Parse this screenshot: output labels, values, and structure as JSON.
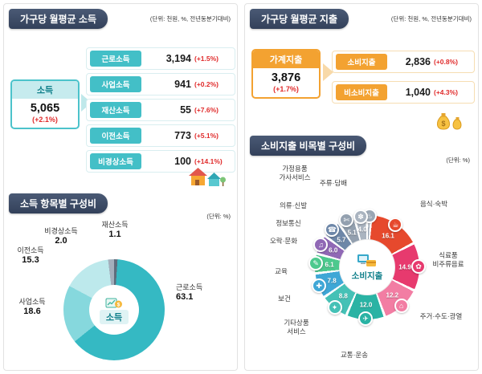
{
  "income_panel": {
    "header": "가구당 월평균 소득",
    "unit_note": "(단위: 천원, %, 전년동분기대비)",
    "total_box": {
      "label": "소득",
      "value": "5,065",
      "change": "(+2.1%)"
    },
    "breakdown": [
      {
        "label": "근로소득",
        "value": "3,194",
        "change": "(+1.5%)"
      },
      {
        "label": "사업소득",
        "value": "941",
        "change": "(+0.2%)"
      },
      {
        "label": "재산소득",
        "value": "55",
        "change": "(+7.6%)"
      },
      {
        "label": "이전소득",
        "value": "773",
        "change": "(+5.1%)"
      },
      {
        "label": "비경상소득",
        "value": "100",
        "change": "(+14.1%)"
      }
    ],
    "composition_header": "소득 항목별 구성비",
    "composition_unit_note": "(단위: %)"
  },
  "expense_panel": {
    "header": "가구당 월평균 지출",
    "unit_note": "(단위: 천원, %, 전년동분기대비)",
    "total_box": {
      "label": "가계지출",
      "value": "3,876",
      "change": "(+1.7%)"
    },
    "breakdown": [
      {
        "label": "소비지출",
        "value": "2,836",
        "change": "(+0.8%)"
      },
      {
        "label": "비소비지출",
        "value": "1,040",
        "change": "(+4.3%)"
      }
    ],
    "composition_header": "소비지출 비목별 구성비",
    "composition_unit_note": "(단위: %)"
  },
  "chart_data": [
    {
      "type": "pie",
      "title": "소득 항목별 구성비",
      "unit": "%",
      "center_label": "소득",
      "order": "clockwise from 12 o'clock",
      "segments": [
        {
          "label": "재산소득",
          "value": 1.1,
          "value_display": "1.1",
          "color": "#5e6c7c"
        },
        {
          "label": "근로소득",
          "value": 63.1,
          "value_display": "63.1",
          "color": "#35b9c3"
        },
        {
          "label": "사업소득",
          "value": 18.6,
          "value_display": "18.6",
          "color": "#86d8dd"
        },
        {
          "label": "이전소득",
          "value": 15.3,
          "value_display": "15.3",
          "color": "#bde9ec"
        },
        {
          "label": "비경상소득",
          "value": 2.0,
          "value_display": "2.0",
          "color": "#a3afbc"
        }
      ]
    },
    {
      "type": "pie",
      "title": "소비지출 비목별 구성비",
      "unit": "%",
      "center_label": "소비지출",
      "order": "clockwise from 12 o'clock",
      "segments": [
        {
          "label": "주류·담배",
          "label_display": "주류·담배",
          "value": 1.3,
          "value_display": "",
          "color": "#9aa6b4",
          "icon": "cigarette-icon"
        },
        {
          "label": "음식·숙박",
          "label_display": "음식·숙박",
          "value": 16.1,
          "value_display": "16.1",
          "color": "#e6492d",
          "icon": "restaurant-icon"
        },
        {
          "label": "식료품·비주류음료",
          "label_display": "식료품\n비주류음료",
          "value": 14.9,
          "value_display": "14.9",
          "color": "#e73a6e",
          "icon": "grocery-icon"
        },
        {
          "label": "주거·수도·광열",
          "label_display": "주거·수도·광열",
          "value": 12.2,
          "value_display": "12.2",
          "color": "#f27da3",
          "icon": "house-icon"
        },
        {
          "label": "교통·운송",
          "label_display": "교통·운송",
          "value": 12.0,
          "value_display": "12.0",
          "color": "#2ab3a4",
          "icon": "bus-icon"
        },
        {
          "label": "기타상품·서비스",
          "label_display": "기타상품\n서비스",
          "value": 8.8,
          "value_display": "8.8",
          "color": "#45c1b6",
          "icon": "shopping-bag-icon"
        },
        {
          "label": "보건",
          "label_display": "보건",
          "value": 7.8,
          "value_display": "7.8",
          "color": "#3fa7d6",
          "icon": "medical-cross-icon"
        },
        {
          "label": "교육",
          "label_display": "교육",
          "value": 6.1,
          "value_display": "6.1",
          "color": "#4dc98e",
          "icon": "pencil-icon"
        },
        {
          "label": "오락·문화",
          "label_display": "오락·문화",
          "value": 6.0,
          "value_display": "6.0",
          "color": "#9068b5",
          "icon": "music-note-icon"
        },
        {
          "label": "정보통신",
          "label_display": "정보통신",
          "value": 5.7,
          "value_display": "5.7",
          "color": "#6e87a8",
          "icon": "phone-icon"
        },
        {
          "label": "의류·신발",
          "label_display": "의류·신발",
          "value": 5.1,
          "value_display": "5.1",
          "color": "#93a0af",
          "icon": "clothes-icon"
        },
        {
          "label": "가정용품·가사서비스",
          "label_display": "가정용품\n가사서비스",
          "value": 4.0,
          "value_display": "4.0",
          "color": "#aab4c0",
          "icon": "home-goods-icon"
        }
      ]
    }
  ],
  "colors": {
    "header_navy": "#3b4a63",
    "income_teal": "#43bfc7",
    "expense_orange": "#f3a231",
    "change_red": "#e02b2b"
  }
}
